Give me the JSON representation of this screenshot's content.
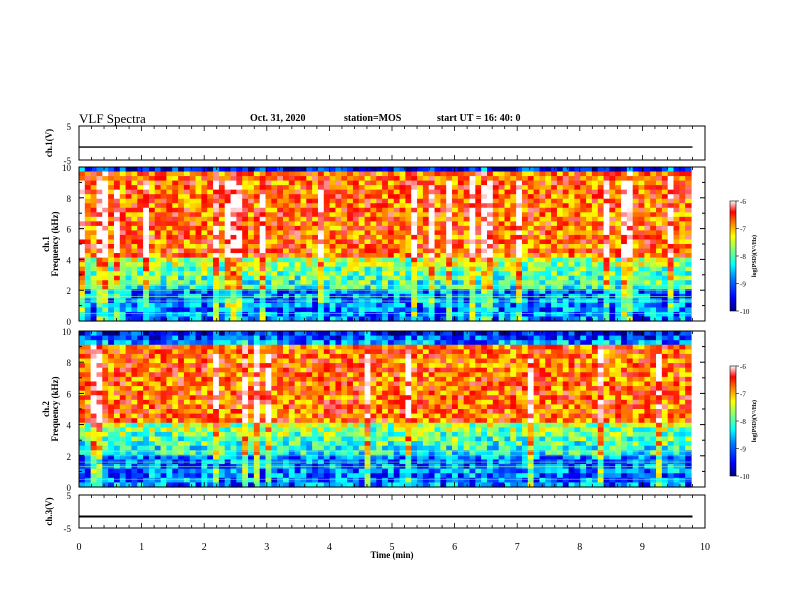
{
  "header": {
    "title": "VLF Spectra",
    "date": "Oct. 31, 2020",
    "station": "station=MOS",
    "start": "start UT =  16: 40: 0"
  },
  "chart_data": [
    {
      "type": "line",
      "panel": "ch1_voltage",
      "ylabel": "ch.1(V)",
      "ylim": [
        -5,
        5
      ],
      "yticks": [
        5,
        -5
      ],
      "series": [
        {
          "x": [
            0,
            9.8
          ],
          "values": [
            -1.2,
            -1.2
          ]
        }
      ]
    },
    {
      "type": "heatmap",
      "panel": "ch1_spectrogram",
      "ylabel": "ch.1",
      "ylabel2": "Frequency (kHz)",
      "ylim": [
        0,
        10
      ],
      "yticks": [
        "0",
        "2",
        "4",
        "6",
        "8",
        "10"
      ],
      "colorbar": {
        "label": "log(PSD)(V²/Hz)",
        "range": [
          -10,
          -6
        ],
        "ticks": [
          "-6",
          "-7",
          "-8",
          "-9",
          "-10"
        ],
        "colors": [
          "#00007f",
          "#0000ff",
          "#007fff",
          "#00ffff",
          "#7fff7f",
          "#ffff00",
          "#ff7f00",
          "#ff0000",
          "#ffffff"
        ]
      },
      "description": "broadband noise; highest PSD between about 4 and 9 kHz, low PSD above 9.5 kHz and below 2 kHz"
    },
    {
      "type": "heatmap",
      "panel": "ch2_spectrogram",
      "ylabel": "ch.2",
      "ylabel2": "Frequency (kHz)",
      "ylim": [
        0,
        10
      ],
      "yticks": [
        "0",
        "2",
        "4",
        "6",
        "8",
        "10"
      ],
      "colorbar": {
        "label": "log(PSD)(V²/Hz)",
        "range": [
          -10,
          -6
        ],
        "ticks": [
          "-6",
          "-7",
          "-8",
          "-9",
          "-10"
        ]
      },
      "description": "broadband noise; highest PSD between about 4 and 8.5 kHz, low PSD above 9 kHz and below 2 kHz"
    },
    {
      "type": "line",
      "panel": "ch3_voltage",
      "ylabel": "ch.3(V)",
      "ylim": [
        -5,
        5
      ],
      "yticks": [
        5,
        -5
      ],
      "series": [
        {
          "x": [
            0,
            9.8
          ],
          "values": [
            -1.5,
            -1.5
          ]
        }
      ]
    }
  ],
  "xaxis": {
    "label": "Time  (min)",
    "ticks": [
      "0",
      "1",
      "2",
      "3",
      "4",
      "5",
      "6",
      "7",
      "8",
      "9",
      "10"
    ],
    "xlim": [
      0,
      10
    ]
  }
}
